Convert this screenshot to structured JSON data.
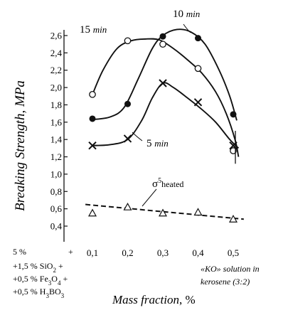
{
  "chart_data": {
    "type": "line",
    "ylabel": "Breaking Strength, MPa",
    "xlabel": "Mass fraction",
    "xlabel_unit": ", %",
    "x": [
      0.1,
      0.2,
      0.3,
      0.4,
      0.5
    ],
    "x_tick_labels": [
      "0,1",
      "0,2",
      "0,3",
      "0,4",
      "0,5"
    ],
    "xlim": [
      0.05,
      0.55
    ],
    "ylim": [
      0.3,
      2.8
    ],
    "y_ticks": [
      0.4,
      0.6,
      0.8,
      1.0,
      1.2,
      1.4,
      1.6,
      1.8,
      2.0,
      2.2,
      2.4,
      2.6
    ],
    "y_tick_labels": [
      "0,4",
      "0,6",
      "0,8",
      "1,0",
      "1,2",
      "1,4",
      "1,6",
      "1,8",
      "2,0",
      "2,2",
      "2,4",
      "2,6"
    ],
    "grid": false,
    "series": [
      {
        "name": "15 min",
        "label_num": "15",
        "label_unit": "min",
        "marker": "open-circle",
        "values": [
          1.92,
          2.54,
          2.5,
          2.22,
          1.27
        ],
        "curve": [
          [
            0.1,
            1.92
          ],
          [
            0.13,
            2.2
          ],
          [
            0.17,
            2.45
          ],
          [
            0.21,
            2.54
          ],
          [
            0.25,
            2.56
          ],
          [
            0.29,
            2.55
          ],
          [
            0.33,
            2.45
          ],
          [
            0.37,
            2.32
          ],
          [
            0.41,
            2.17
          ],
          [
            0.45,
            1.95
          ],
          [
            0.48,
            1.7
          ],
          [
            0.505,
            1.4
          ],
          [
            0.515,
            1.2
          ]
        ]
      },
      {
        "name": "10 min",
        "label_num": "10",
        "label_unit": "min",
        "marker": "filled-circle",
        "values": [
          1.64,
          1.81,
          2.59,
          2.57,
          1.69
        ],
        "curve": [
          [
            0.1,
            1.63
          ],
          [
            0.15,
            1.66
          ],
          [
            0.19,
            1.77
          ],
          [
            0.23,
            2.1
          ],
          [
            0.27,
            2.45
          ],
          [
            0.3,
            2.6
          ],
          [
            0.34,
            2.67
          ],
          [
            0.38,
            2.64
          ],
          [
            0.42,
            2.5
          ],
          [
            0.46,
            2.2
          ],
          [
            0.49,
            1.9
          ],
          [
            0.51,
            1.62
          ]
        ]
      },
      {
        "name": "5 min",
        "label_num": "5",
        "label_unit": "min",
        "marker": "cross",
        "values": [
          1.33,
          1.41,
          2.05,
          1.83,
          1.33
        ],
        "curve": [
          [
            0.1,
            1.33
          ],
          [
            0.15,
            1.34
          ],
          [
            0.2,
            1.4
          ],
          [
            0.24,
            1.62
          ],
          [
            0.27,
            1.88
          ],
          [
            0.3,
            2.05
          ],
          [
            0.33,
            2.0
          ],
          [
            0.37,
            1.88
          ],
          [
            0.41,
            1.75
          ],
          [
            0.45,
            1.6
          ],
          [
            0.49,
            1.4
          ],
          [
            0.515,
            1.3
          ]
        ]
      },
      {
        "name": "σ5 heated",
        "label_sigma": "σ",
        "label_sup": "5",
        "label_sub": "heated",
        "marker": "open-triangle",
        "line": "dashed",
        "values": [
          0.55,
          0.62,
          0.55,
          0.56,
          0.48
        ],
        "curve": [
          [
            0.08,
            0.65
          ],
          [
            0.53,
            0.48
          ]
        ]
      }
    ],
    "annotations": {
      "left_lines": [
        "5 %",
        "+1,5 % SiO2 +",
        "+0,5 % Fe3O4 +",
        "+0,5 % H3BO3"
      ],
      "plus_sign": "+",
      "right_lines": [
        "«KO» solution in",
        "kerosene (3:2)"
      ]
    }
  }
}
